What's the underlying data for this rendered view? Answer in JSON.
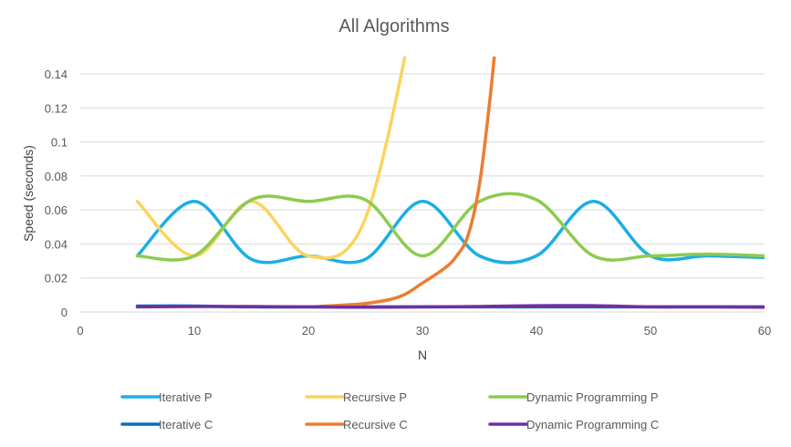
{
  "chart_data": {
    "type": "line",
    "title": "All Algorithms",
    "xlabel": "N",
    "ylabel": "Speed (seconds)",
    "xlim": [
      0,
      60
    ],
    "ylim": [
      0,
      0.14
    ],
    "x_ticks": [
      "0",
      "10",
      "20",
      "30",
      "40",
      "50",
      "60"
    ],
    "y_ticks": [
      "0",
      "0.02",
      "0.04",
      "0.06",
      "0.08",
      "0.1",
      "0.12",
      "0.14"
    ],
    "grid": true,
    "legend_position": "bottom",
    "series": [
      {
        "name": "Iterative P",
        "color": "#1BAEE6",
        "x": [
          5,
          10,
          15,
          20,
          25,
          30,
          35,
          40,
          45,
          50,
          55,
          60
        ],
        "y": [
          0.033,
          0.065,
          0.031,
          0.033,
          0.031,
          0.065,
          0.033,
          0.033,
          0.065,
          0.033,
          0.033,
          0.032
        ]
      },
      {
        "name": "Recursive P",
        "color": "#FBD45D",
        "x": [
          5,
          10,
          15,
          20,
          25,
          30
        ],
        "y": [
          0.065,
          0.033,
          0.065,
          0.033,
          0.055,
          0.2
        ]
      },
      {
        "name": "Dynamic Programming P",
        "color": "#8CCB50",
        "x": [
          5,
          10,
          15,
          20,
          25,
          30,
          35,
          40,
          45,
          50,
          55,
          60
        ],
        "y": [
          0.033,
          0.033,
          0.066,
          0.065,
          0.066,
          0.033,
          0.065,
          0.066,
          0.033,
          0.033,
          0.034,
          0.033
        ]
      },
      {
        "name": "Iterative C",
        "color": "#0070C0",
        "x": [
          5,
          10,
          15,
          20,
          25,
          30,
          35,
          40,
          45,
          50,
          55,
          60
        ],
        "y": [
          0.0035,
          0.0035,
          0.003,
          0.003,
          0.003,
          0.003,
          0.003,
          0.003,
          0.003,
          0.003,
          0.003,
          0.003
        ]
      },
      {
        "name": "Recursive C",
        "color": "#ED7D31",
        "x": [
          20,
          25,
          28,
          30,
          32,
          33,
          34,
          35,
          36,
          37
        ],
        "y": [
          0.003,
          0.005,
          0.009,
          0.017,
          0.026,
          0.033,
          0.045,
          0.075,
          0.13,
          0.2
        ]
      },
      {
        "name": "Dynamic Programming C",
        "color": "#7030A0",
        "x": [
          5,
          10,
          15,
          20,
          25,
          30,
          35,
          40,
          45,
          50,
          55,
          60
        ],
        "y": [
          0.003,
          0.0032,
          0.0032,
          0.003,
          0.0028,
          0.003,
          0.0032,
          0.0037,
          0.0037,
          0.003,
          0.003,
          0.0028
        ]
      }
    ]
  }
}
